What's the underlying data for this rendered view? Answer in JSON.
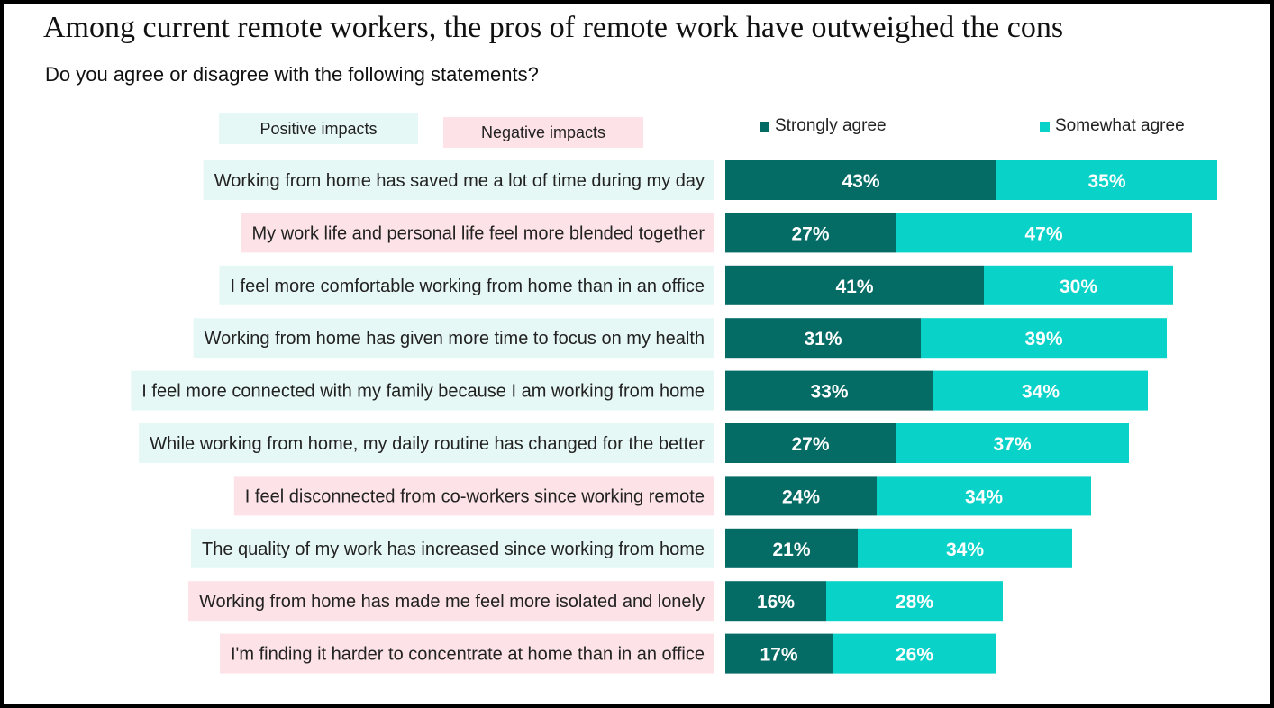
{
  "title": "Among current remote workers, the pros of remote work have outweighed the cons",
  "subtitle": "Do you agree or disagree with the following statements?",
  "impact_key": {
    "positive_label": "Positive impacts",
    "negative_label": "Negative impacts",
    "positive_color": "#e6f8f6",
    "negative_color": "#fde3e7"
  },
  "chart_data": {
    "type": "bar",
    "orientation": "horizontal",
    "stacked": true,
    "value_format": "percent",
    "categories": [
      "Working from home has saved me a lot of time during my day",
      "My work life and personal life feel more blended together",
      "I feel more comfortable working from home than in an office",
      "Working from home has given more time to focus on my health",
      "I feel more connected with my family because I am working from home",
      "While working from home, my daily routine has changed for the better",
      "I feel disconnected from co-workers since working remote",
      "The quality of my work has increased since working from home",
      "Working from home has made me feel more isolated and lonely",
      "I'm finding it harder to concentrate at home than in an office"
    ],
    "category_impact": [
      "positive",
      "negative",
      "positive",
      "positive",
      "positive",
      "positive",
      "negative",
      "positive",
      "negative",
      "negative"
    ],
    "series": [
      {
        "name": "Strongly agree",
        "color": "#056b65",
        "values": [
          43,
          27,
          41,
          31,
          33,
          27,
          24,
          21,
          16,
          17
        ]
      },
      {
        "name": "Somewhat agree",
        "color": "#09d2c8",
        "values": [
          35,
          47,
          30,
          39,
          34,
          37,
          34,
          34,
          28,
          26
        ]
      }
    ],
    "legend_position": "top",
    "grid": false,
    "data_label_color": "#ffffff"
  }
}
